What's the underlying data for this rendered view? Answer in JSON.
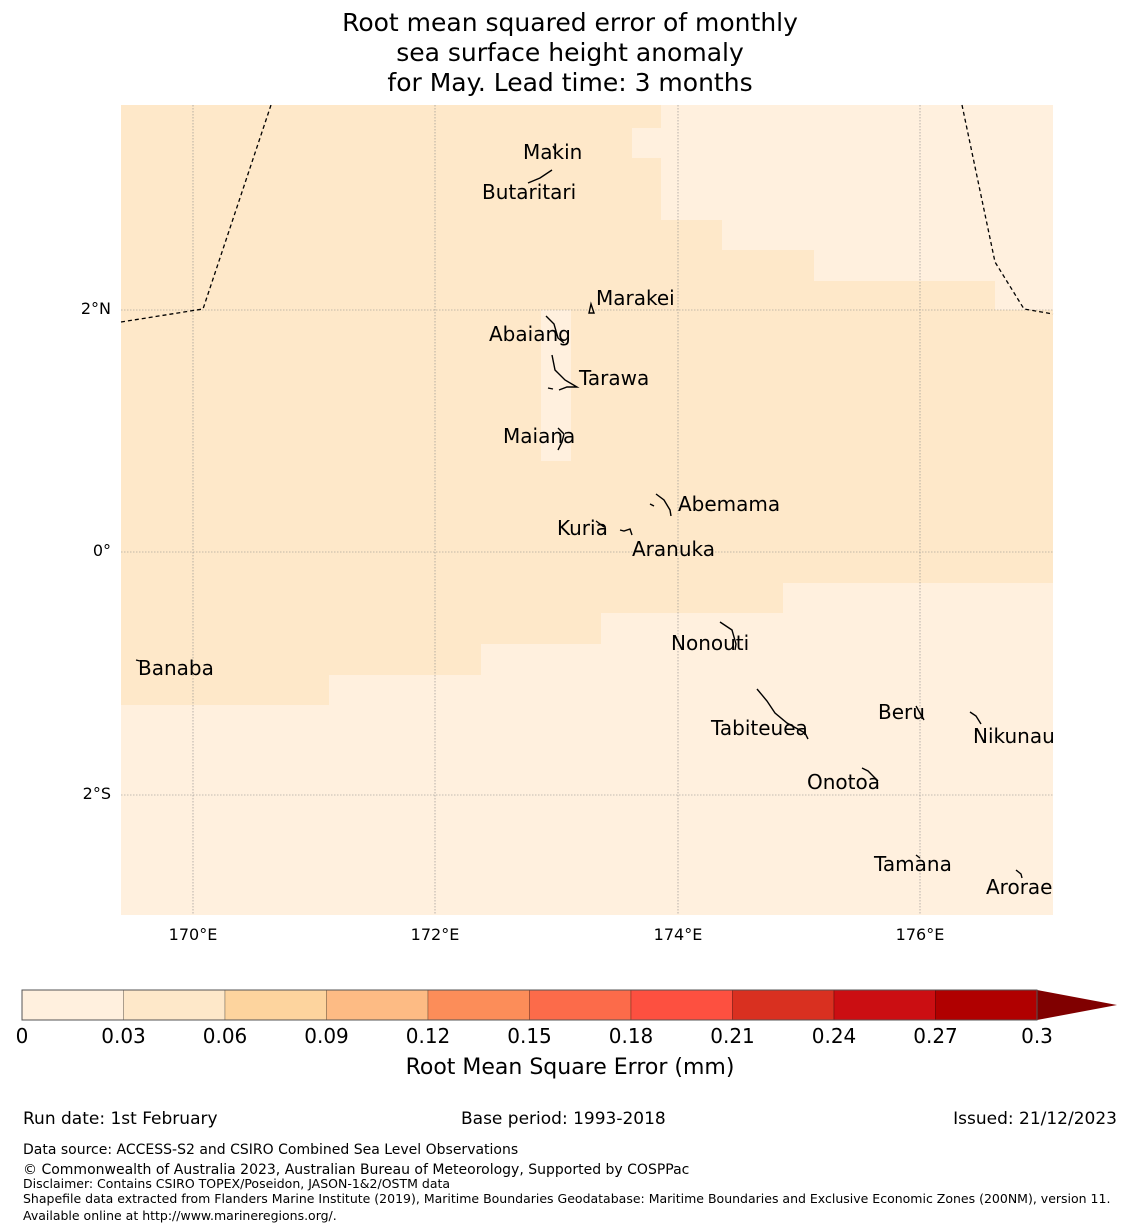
{
  "title": [
    "Root mean squared error of monthly",
    "sea surface height anomaly",
    "for May. Lead time: 3 months"
  ],
  "map": {
    "lat_ticks": [
      "2°N",
      "0°",
      "2°S"
    ],
    "lon_ticks": [
      "170°E",
      "172°E",
      "174°E",
      "176°E"
    ],
    "islands": [
      "Makin",
      "Butaritari",
      "Marakei",
      "Abaiang",
      "Tarawa",
      "Maiana",
      "Abemama",
      "Kuria",
      "Aranuka",
      "Nonouti",
      "Banaba",
      "Tabiteuea",
      "Beru",
      "Nikunau",
      "Onotoa",
      "Tamana",
      "Arorae"
    ],
    "field_colors": {
      "low": "#fff0de",
      "mid": "#fee8c9"
    }
  },
  "colorbar": {
    "ticks": [
      "0",
      "0.03",
      "0.06",
      "0.09",
      "0.12",
      "0.15",
      "0.18",
      "0.21",
      "0.24",
      "0.27",
      "0.3"
    ],
    "colors": [
      "#fff0de",
      "#fee8c9",
      "#fdd49e",
      "#fdbb84",
      "#fc8d59",
      "#fc6b4a",
      "#fd5040",
      "#d93020",
      "#cb0e12",
      "#b00000"
    ],
    "extend_color": "#800000",
    "label": "Root Mean Square Error (mm)"
  },
  "footer": {
    "run_date": "Run date: 1st February",
    "base_period": "Base period: 1993-2018",
    "issued": "Issued: 21/12/2023",
    "data_source": "Data source: ACCESS-S2 and CSIRO Combined Sea Level Observations",
    "copyright": "© Commonwealth of Australia 2023, Australian Bureau of Meteorology, Supported by COSPPac",
    "disclaimer": "Disclaimer: Contains CSIRO TOPEX/Poseidon, JASON-1&2/OSTM data",
    "shapefile": "Shapefile data extracted from Flanders Marine Institute (2019), Maritime Boundaries Geodatabase: Maritime Boundaries and Exclusive Economic Zones (200NM), version 11. Available online at http://www.marineregions.org/."
  }
}
